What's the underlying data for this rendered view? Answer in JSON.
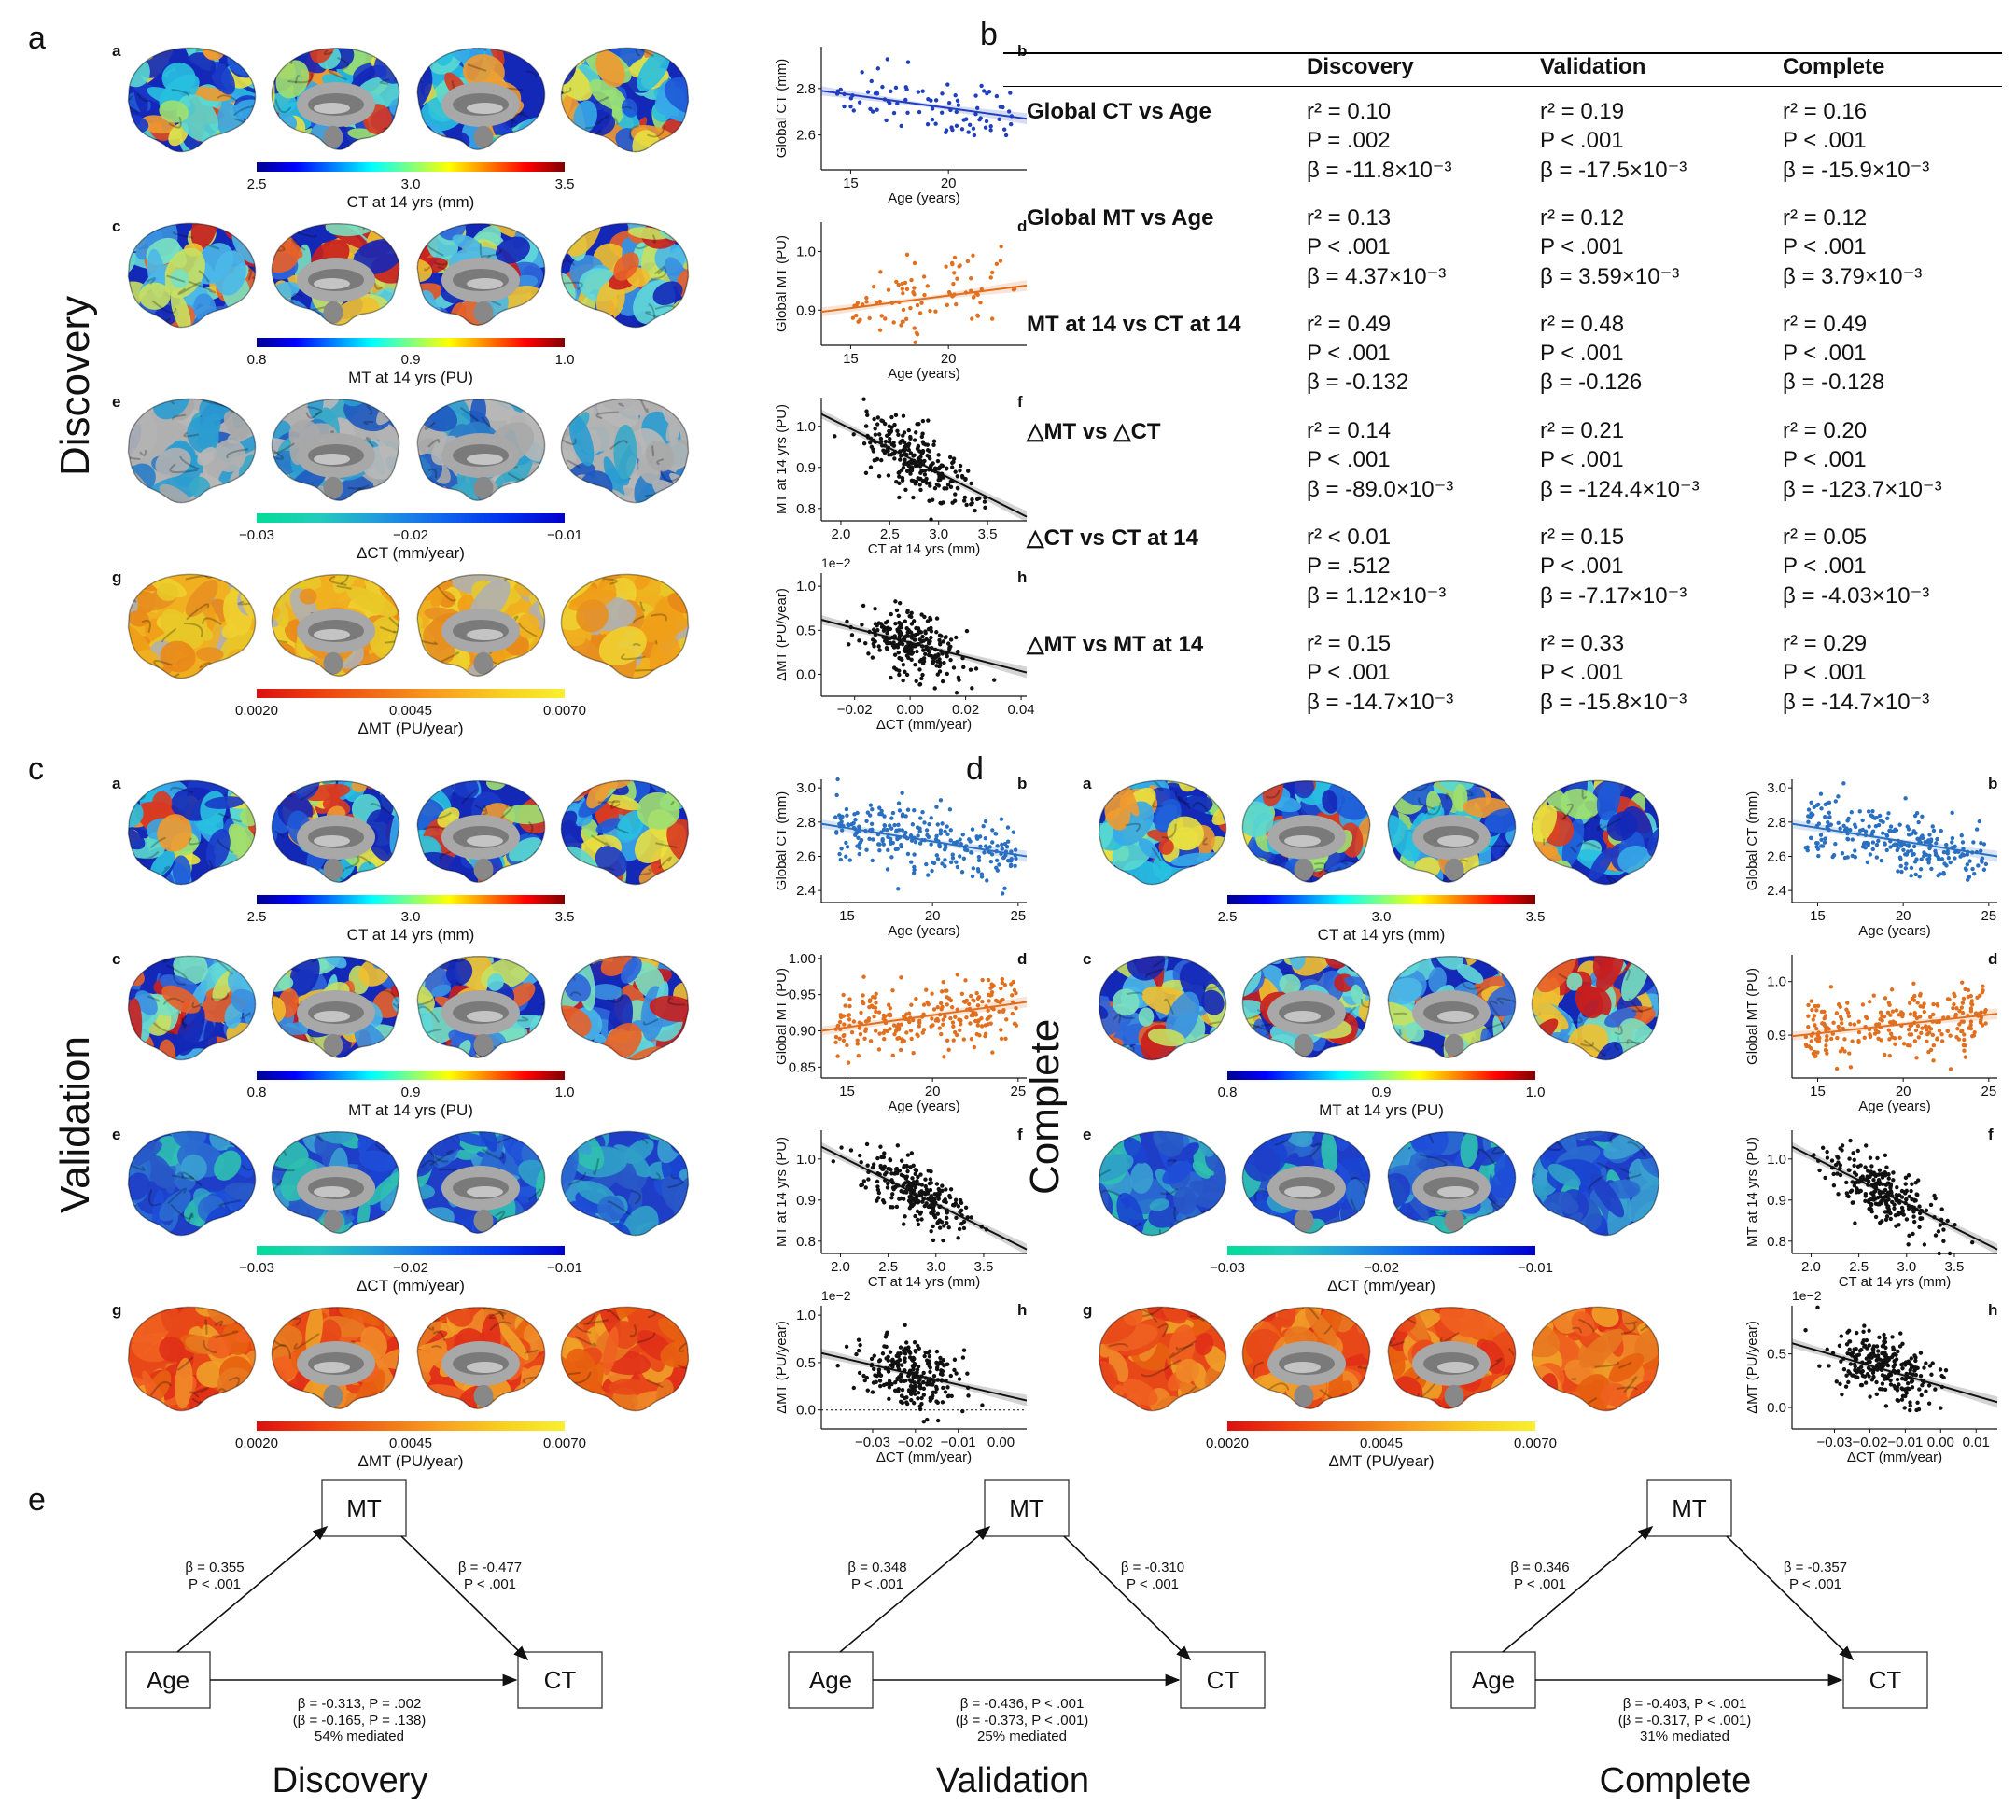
{
  "panel_letters": {
    "a": "a",
    "b": "b",
    "c": "c",
    "d": "d",
    "e": "e"
  },
  "group_titles": {
    "discovery": "Discovery",
    "validation": "Validation",
    "complete": "Complete"
  },
  "sub_letters": [
    "a",
    "b",
    "c",
    "d",
    "e",
    "f",
    "g",
    "h"
  ],
  "colorbars": {
    "ct": {
      "ticks": [
        "2.5",
        "3.0",
        "3.5"
      ],
      "label": "CT at 14 yrs (mm)"
    },
    "mt": {
      "ticks": [
        "0.8",
        "0.9",
        "1.0"
      ],
      "label": "MT at 14 yrs (PU)"
    },
    "dct": {
      "ticks": [
        "−0.03",
        "−0.02",
        "−0.01"
      ],
      "label": "ΔCT (mm/year)"
    },
    "dmt": {
      "ticks": [
        "0.0020",
        "0.0045",
        "0.0070"
      ],
      "label": "ΔMT (PU/year)"
    }
  },
  "colors": {
    "ct_series": "#1f3fbf",
    "ct_series_light": "#2a6fc0",
    "mt_series": "#e07020",
    "black": "#111111"
  },
  "table": {
    "headers": [
      "Discovery",
      "Validation",
      "Complete"
    ],
    "rows": [
      {
        "label": "Global CT vs Age",
        "cells": [
          [
            "r² = 0.10",
            "P = .002",
            "β = -11.8×10⁻³"
          ],
          [
            "r² = 0.19",
            "P < .001",
            "β = -17.5×10⁻³"
          ],
          [
            "r² = 0.16",
            "P < .001",
            "β = -15.9×10⁻³"
          ]
        ]
      },
      {
        "label": "Global MT vs Age",
        "cells": [
          [
            "r² = 0.13",
            "P < .001",
            "β = 4.37×10⁻³"
          ],
          [
            "r² = 0.12",
            "P < .001",
            "β = 3.59×10⁻³"
          ],
          [
            "r² = 0.12",
            "P < .001",
            "β = 3.79×10⁻³"
          ]
        ]
      },
      {
        "label": "MT at 14 vs CT at 14",
        "cells": [
          [
            "r² = 0.49",
            "P < .001",
            "β = -0.132"
          ],
          [
            "r² = 0.48",
            "P < .001",
            "β = -0.126"
          ],
          [
            "r² = 0.49",
            "P < .001",
            "β = -0.128"
          ]
        ]
      },
      {
        "label": "△MT vs △CT",
        "cells": [
          [
            "r² = 0.14",
            "P < .001",
            "β = -89.0×10⁻³"
          ],
          [
            "r² = 0.21",
            "P < .001",
            "β = -124.4×10⁻³"
          ],
          [
            "r² = 0.20",
            "P < .001",
            "β = -123.7×10⁻³"
          ]
        ]
      },
      {
        "label": "△CT vs CT at 14",
        "cells": [
          [
            "r² < 0.01",
            "P = .512",
            "β = 1.12×10⁻³"
          ],
          [
            "r² = 0.15",
            "P < .001",
            "β = -7.17×10⁻³"
          ],
          [
            "r² = 0.05",
            "P < .001",
            "β = -4.03×10⁻³"
          ]
        ]
      },
      {
        "label": "△MT vs MT at 14",
        "cells": [
          [
            "r² = 0.15",
            "P < .001",
            "β = -14.7×10⁻³"
          ],
          [
            "r² = 0.33",
            "P < .001",
            "β = -15.8×10⁻³"
          ],
          [
            "r² = 0.29",
            "P < .001",
            "β = -14.7×10⁻³"
          ]
        ]
      }
    ]
  },
  "mediation": [
    {
      "title": "Discovery",
      "a_beta": "β = 0.355",
      "a_p": "P < .001",
      "b_beta": "β = -0.477",
      "b_p": "P < .001",
      "c_line1": "β = -0.313, P = .002",
      "c_line2": "(β = -0.165, P = .138)",
      "c_line3": "54% mediated"
    },
    {
      "title": "Validation",
      "a_beta": "β = 0.348",
      "a_p": "P < .001",
      "b_beta": "β = -0.310",
      "b_p": "P < .001",
      "c_line1": "β = -0.436, P < .001",
      "c_line2": "(β = -0.373, P < .001)",
      "c_line3": "25% mediated"
    },
    {
      "title": "Complete",
      "a_beta": "β = 0.346",
      "a_p": "P < .001",
      "b_beta": "β = -0.357",
      "b_p": "P < .001",
      "c_line1": "β = -0.403, P < .001",
      "c_line2": "(β = -0.317, P < .001)",
      "c_line3": "31% mediated"
    }
  ],
  "med_nodes": {
    "mt": "MT",
    "age": "Age",
    "ct": "CT"
  },
  "chart_data": [
    {
      "type": "scatter",
      "panel": "Discovery b",
      "xlabel": "Age (years)",
      "ylabel": "Global CT (mm)",
      "xticks": [
        "15",
        "20"
      ],
      "yticks": [
        "2.6",
        "2.8"
      ],
      "xlim": [
        13.5,
        24
      ],
      "ylim": [
        2.45,
        2.98
      ],
      "fit": {
        "x": [
          13.5,
          24
        ],
        "y": [
          2.79,
          2.67
        ]
      },
      "color": "#1f3fbf"
    },
    {
      "type": "scatter",
      "panel": "Discovery d",
      "xlabel": "Age (years)",
      "ylabel": "Global MT (PU)",
      "xticks": [
        "15",
        "20"
      ],
      "yticks": [
        "0.9",
        "1.0"
      ],
      "xlim": [
        13.5,
        24
      ],
      "ylim": [
        0.84,
        1.05
      ],
      "fit": {
        "x": [
          13.5,
          24
        ],
        "y": [
          0.897,
          0.942
        ]
      },
      "color": "#e07020"
    },
    {
      "type": "scatter",
      "panel": "Discovery f",
      "xlabel": "CT at 14 yrs (mm)",
      "ylabel": "MT at 14 yrs (PU)",
      "xticks": [
        "2.0",
        "2.5",
        "3.0",
        "3.5"
      ],
      "yticks": [
        "0.8",
        "0.9",
        "1.0"
      ],
      "xlim": [
        1.8,
        3.9
      ],
      "ylim": [
        0.77,
        1.07
      ],
      "fit": {
        "x": [
          1.8,
          3.9
        ],
        "y": [
          1.03,
          0.78
        ]
      },
      "color": "#111111"
    },
    {
      "type": "scatter",
      "panel": "Discovery h",
      "xlabel": "ΔCT (mm/year)",
      "ylabel": "ΔMT (PU/year)",
      "xticks": [
        "−0.02",
        "0.00",
        "0.02",
        "0.04"
      ],
      "yticks": [
        "0.0",
        "0.5",
        "1.0"
      ],
      "offset": "1e−2",
      "xlim": [
        -0.032,
        0.042
      ],
      "ylim": [
        -0.25,
        1.15
      ],
      "fit": {
        "x": [
          -0.032,
          0.042
        ],
        "y": [
          0.62,
          0.02
        ]
      },
      "color": "#111111"
    },
    {
      "type": "scatter",
      "panel": "Validation b",
      "xlabel": "Age (years)",
      "ylabel": "Global CT (mm)",
      "xticks": [
        "15",
        "20",
        "25"
      ],
      "yticks": [
        "2.4",
        "2.6",
        "2.8",
        "3.0"
      ],
      "xlim": [
        13.5,
        25.5
      ],
      "ylim": [
        2.33,
        3.05
      ],
      "fit": {
        "x": [
          13.5,
          25.5
        ],
        "y": [
          2.79,
          2.6
        ]
      },
      "color": "#2a6fc0"
    },
    {
      "type": "scatter",
      "panel": "Validation d",
      "xlabel": "Age (years)",
      "ylabel": "Global MT (PU)",
      "xticks": [
        "15",
        "20",
        "25"
      ],
      "yticks": [
        "0.85",
        "0.90",
        "0.95",
        "1.00"
      ],
      "xlim": [
        13.5,
        25.5
      ],
      "ylim": [
        0.835,
        1.005
      ],
      "fit": {
        "x": [
          13.5,
          25.5
        ],
        "y": [
          0.9,
          0.94
        ]
      },
      "color": "#e07020"
    },
    {
      "type": "scatter",
      "panel": "Validation f",
      "xlabel": "CT at 14 yrs (mm)",
      "ylabel": "MT at 14 yrs (PU)",
      "xticks": [
        "2.0",
        "2.5",
        "3.0",
        "3.5"
      ],
      "yticks": [
        "0.8",
        "0.9",
        "1.0"
      ],
      "xlim": [
        1.8,
        3.95
      ],
      "ylim": [
        0.77,
        1.07
      ],
      "fit": {
        "x": [
          1.8,
          3.95
        ],
        "y": [
          1.03,
          0.78
        ]
      },
      "color": "#111111"
    },
    {
      "type": "scatter",
      "panel": "Validation h",
      "xlabel": "ΔCT (mm/year)",
      "ylabel": "ΔMT (PU/year)",
      "xticks": [
        "−0.03",
        "−0.02",
        "−0.01",
        "0.00"
      ],
      "yticks": [
        "0.0",
        "0.5",
        "1.0"
      ],
      "offset": "1e−2",
      "xlim": [
        -0.042,
        0.006
      ],
      "ylim": [
        -0.2,
        1.1
      ],
      "fit": {
        "x": [
          -0.042,
          0.006
        ],
        "y": [
          0.6,
          0.1
        ]
      },
      "color": "#111111"
    },
    {
      "type": "scatter",
      "panel": "Complete b",
      "xlabel": "Age (years)",
      "ylabel": "Global CT (mm)",
      "xticks": [
        "15",
        "20",
        "25"
      ],
      "yticks": [
        "2.4",
        "2.6",
        "2.8",
        "3.0"
      ],
      "xlim": [
        13.5,
        25.5
      ],
      "ylim": [
        2.33,
        3.05
      ],
      "fit": {
        "x": [
          13.5,
          25.5
        ],
        "y": [
          2.79,
          2.6
        ]
      },
      "color": "#2a6fc0"
    },
    {
      "type": "scatter",
      "panel": "Complete d",
      "xlabel": "Age (years)",
      "ylabel": "Global MT (PU)",
      "xticks": [
        "15",
        "20",
        "25"
      ],
      "yticks": [
        "0.9",
        "1.0"
      ],
      "xlim": [
        13.5,
        25.5
      ],
      "ylim": [
        0.82,
        1.05
      ],
      "fit": {
        "x": [
          13.5,
          25.5
        ],
        "y": [
          0.898,
          0.94
        ]
      },
      "color": "#e07020"
    },
    {
      "type": "scatter",
      "panel": "Complete f",
      "xlabel": "CT at 14 yrs (mm)",
      "ylabel": "MT at 14 yrs (PU)",
      "xticks": [
        "2.0",
        "2.5",
        "3.0",
        "3.5"
      ],
      "yticks": [
        "0.8",
        "0.9",
        "1.0"
      ],
      "xlim": [
        1.8,
        3.95
      ],
      "ylim": [
        0.77,
        1.07
      ],
      "fit": {
        "x": [
          1.8,
          3.95
        ],
        "y": [
          1.03,
          0.78
        ]
      },
      "color": "#111111"
    },
    {
      "type": "scatter",
      "panel": "Complete h",
      "xlabel": "ΔCT (mm/year)",
      "ylabel": "ΔMT (PU/year)",
      "xticks": [
        "−0.03",
        "−0.02",
        "−0.01",
        "0.00",
        "0.01"
      ],
      "yticks": [
        "0.0",
        "0.5"
      ],
      "offset": "1e−2",
      "xlim": [
        -0.042,
        0.016
      ],
      "ylim": [
        -0.2,
        0.95
      ],
      "fit": {
        "x": [
          -0.042,
          0.016
        ],
        "y": [
          0.6,
          0.05
        ]
      },
      "color": "#111111"
    }
  ]
}
